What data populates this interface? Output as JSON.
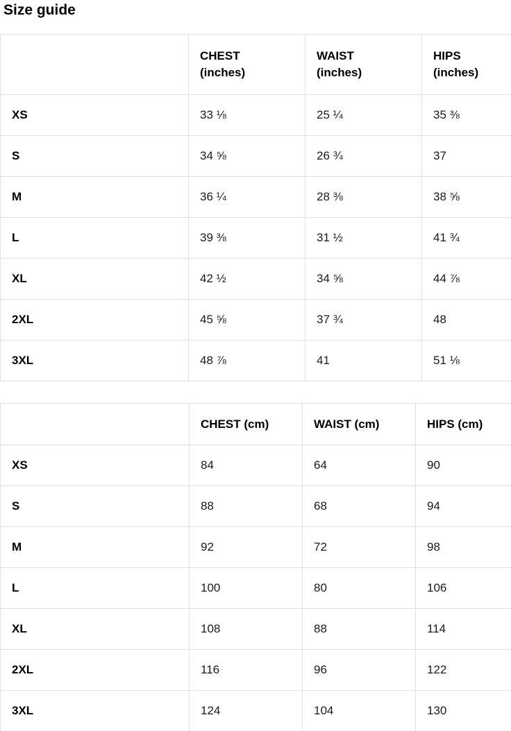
{
  "title": "Size guide",
  "inches": {
    "columns": [
      {
        "measure": "CHEST",
        "unit": "(inches)"
      },
      {
        "measure": "WAIST",
        "unit": "(inches)"
      },
      {
        "measure": "HIPS",
        "unit": "(inches)"
      }
    ],
    "rows": [
      {
        "size": "XS",
        "chest": "33 ⅛",
        "waist": "25 ¼",
        "hips": "35 ⅜"
      },
      {
        "size": "S",
        "chest": "34 ⅝",
        "waist": "26 ¾",
        "hips": "37"
      },
      {
        "size": "M",
        "chest": "36 ¼",
        "waist": "28 ⅜",
        "hips": "38 ⅝"
      },
      {
        "size": "L",
        "chest": "39 ⅜",
        "waist": "31 ½",
        "hips": "41 ¾"
      },
      {
        "size": "XL",
        "chest": "42 ½",
        "waist": "34 ⅝",
        "hips": "44 ⅞"
      },
      {
        "size": "2XL",
        "chest": "45 ⅝",
        "waist": "37 ¾",
        "hips": "48"
      },
      {
        "size": "3XL",
        "chest": "48 ⅞",
        "waist": "41",
        "hips": "51 ⅛"
      }
    ]
  },
  "cm": {
    "columns": [
      {
        "label": "CHEST (cm)"
      },
      {
        "label": "WAIST (cm)"
      },
      {
        "label": "HIPS (cm)"
      }
    ],
    "rows": [
      {
        "size": "XS",
        "chest": "84",
        "waist": "64",
        "hips": "90"
      },
      {
        "size": "S",
        "chest": "88",
        "waist": "68",
        "hips": "94"
      },
      {
        "size": "M",
        "chest": "92",
        "waist": "72",
        "hips": "98"
      },
      {
        "size": "L",
        "chest": "100",
        "waist": "80",
        "hips": "106"
      },
      {
        "size": "XL",
        "chest": "108",
        "waist": "88",
        "hips": "114"
      },
      {
        "size": "2XL",
        "chest": "116",
        "waist": "96",
        "hips": "122"
      },
      {
        "size": "3XL",
        "chest": "124",
        "waist": "104",
        "hips": "130"
      }
    ]
  }
}
